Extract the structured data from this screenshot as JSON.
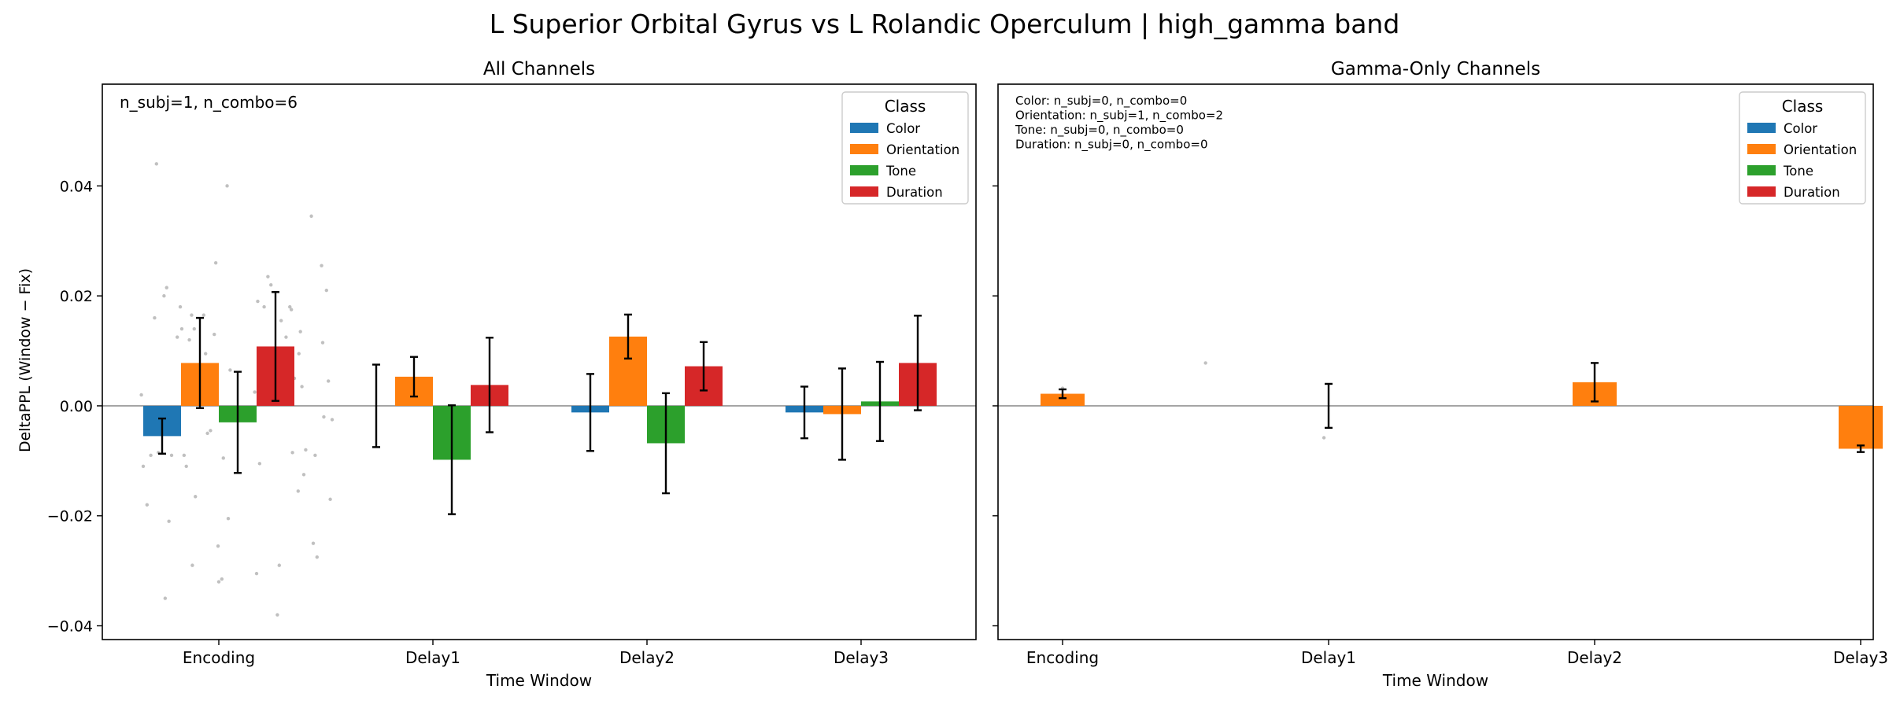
{
  "suptitle": "L Superior Orbital Gyrus vs L Rolandic Operculum  |  high_gamma band",
  "ylabel": "DeltaPPL (Window − Fix)",
  "classes": [
    {
      "name": "Color",
      "color": "#1f77b4"
    },
    {
      "name": "Orientation",
      "color": "#ff7f0e"
    },
    {
      "name": "Tone",
      "color": "#2ca02c"
    },
    {
      "name": "Duration",
      "color": "#d62728"
    }
  ],
  "chart_data": [
    {
      "type": "bar",
      "title": "All Channels",
      "xlabel": "Time Window",
      "ylabel": "DeltaPPL (Window − Fix)",
      "ylim": [
        -0.0425,
        0.0585
      ],
      "yticks": [
        -0.04,
        -0.02,
        0.0,
        0.02,
        0.04
      ],
      "ytick_labels": [
        "−0.04",
        "−0.02",
        "0.00",
        "0.02",
        "0.04"
      ],
      "categories": [
        "Encoding",
        "Delay1",
        "Delay2",
        "Delay3"
      ],
      "annotation": [
        "n_subj=1, n_combo=6"
      ],
      "legend": {
        "title": "Class",
        "placement": "top-right"
      },
      "series": [
        {
          "name": "Color",
          "values": [
            -0.0055,
            0.0,
            -0.0012,
            -0.0012
          ],
          "err": [
            0.0032,
            0.0075,
            0.007,
            0.0047
          ]
        },
        {
          "name": "Orientation",
          "values": [
            0.0078,
            0.0053,
            0.0126,
            -0.0015
          ],
          "err": [
            0.0082,
            0.0036,
            0.004,
            0.0083
          ]
        },
        {
          "name": "Tone",
          "values": [
            -0.003,
            -0.0098,
            -0.0068,
            0.0008
          ],
          "err": [
            0.0092,
            0.0099,
            0.0091,
            0.0072
          ]
        },
        {
          "name": "Duration",
          "values": [
            0.0108,
            0.0038,
            0.0072,
            0.0078
          ],
          "err": [
            0.0099,
            0.0086,
            0.0044,
            0.0086
          ]
        }
      ],
      "points": [
        [
          -0.55,
          0.002
        ],
        [
          -0.5,
          -0.011
        ],
        [
          -0.4,
          -0.018
        ],
        [
          -0.3,
          -0.009
        ],
        [
          -0.2,
          0.016
        ],
        [
          -0.15,
          0.044
        ],
        [
          -0.1,
          -0.0085
        ],
        [
          0.05,
          0.02
        ],
        [
          0.08,
          -0.035
        ],
        [
          0.12,
          0.0215
        ],
        [
          0.18,
          -0.021
        ],
        [
          0.25,
          -0.009
        ],
        [
          0.32,
          -0.0005
        ],
        [
          0.4,
          0.0125
        ],
        [
          0.48,
          0.018
        ],
        [
          0.52,
          0.014
        ],
        [
          0.58,
          -0.009
        ],
        [
          0.64,
          -0.011
        ],
        [
          0.72,
          0.012
        ],
        [
          0.78,
          0.0165
        ],
        [
          0.8,
          -0.029
        ],
        [
          0.85,
          0.014
        ],
        [
          0.88,
          -0.0165
        ],
        [
          1.1,
          0.0165
        ],
        [
          1.15,
          0.0095
        ],
        [
          1.2,
          -0.005
        ],
        [
          1.28,
          -0.0045
        ],
        [
          1.38,
          0.013
        ],
        [
          1.42,
          0.026
        ],
        [
          1.48,
          -0.0255
        ],
        [
          1.5,
          -0.032
        ],
        [
          1.58,
          -0.0315
        ],
        [
          1.62,
          -0.0095
        ],
        [
          1.72,
          0.04
        ],
        [
          1.75,
          -0.0205
        ],
        [
          1.8,
          0.0065
        ],
        [
          1.85,
          -0.0025
        ],
        [
          2.45,
          0.0025
        ],
        [
          2.5,
          -0.0305
        ],
        [
          2.53,
          0.019
        ],
        [
          2.58,
          -0.0105
        ],
        [
          2.7,
          0.018
        ],
        [
          2.8,
          0.0235
        ],
        [
          2.88,
          0.022
        ],
        [
          3.0,
          0.0095
        ],
        [
          3.05,
          -0.038
        ],
        [
          3.1,
          -0.029
        ],
        [
          3.15,
          0.0155
        ],
        [
          3.18,
          0.0015
        ],
        [
          3.28,
          0.0125
        ],
        [
          3.38,
          0.018
        ],
        [
          3.42,
          0.0175
        ],
        [
          3.45,
          -0.0085
        ],
        [
          3.5,
          0.005
        ],
        [
          3.6,
          -0.0155
        ],
        [
          3.62,
          0.0095
        ],
        [
          3.66,
          0.0135
        ],
        [
          3.7,
          0.0035
        ],
        [
          3.75,
          -0.0125
        ],
        [
          3.8,
          -0.008
        ],
        [
          3.95,
          0.0345
        ],
        [
          4.0,
          -0.025
        ],
        [
          4.05,
          -0.009
        ],
        [
          4.1,
          -0.0275
        ],
        [
          4.22,
          0.0255
        ],
        [
          4.25,
          0.0115
        ],
        [
          4.28,
          -0.002
        ],
        [
          4.35,
          0.021
        ],
        [
          4.4,
          0.0045
        ],
        [
          4.45,
          -0.017
        ],
        [
          4.5,
          -0.0025
        ]
      ]
    },
    {
      "type": "bar",
      "title": "Gamma-Only Channels",
      "xlabel": "Time Window",
      "ylim": [
        -0.0425,
        0.0585
      ],
      "yticks": [
        -0.04,
        -0.02,
        0.0,
        0.02,
        0.04
      ],
      "categories": [
        "Encoding",
        "Delay1",
        "Delay2",
        "Delay3"
      ],
      "annotation": [
        "Color: n_subj=0, n_combo=0",
        "Orientation: n_subj=1, n_combo=2",
        "Tone: n_subj=0, n_combo=0",
        "Duration: n_subj=0, n_combo=0"
      ],
      "legend": {
        "title": "Class",
        "placement": "top-right"
      },
      "series": [
        {
          "name": "Orientation",
          "values": [
            0.0022,
            0.0,
            0.0043,
            -0.0078
          ],
          "err": [
            0.0008,
            0.004,
            0.0035,
            0.0006
          ]
        }
      ],
      "points": [
        [
          0.0,
          0.0032
        ],
        [
          2.15,
          0.0078
        ],
        [
          3.93,
          -0.0058
        ]
      ]
    }
  ]
}
